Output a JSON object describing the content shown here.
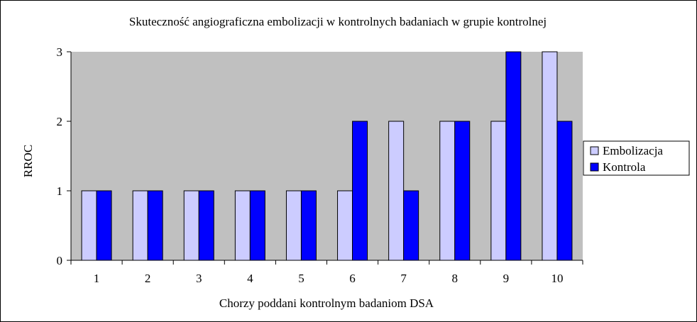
{
  "chart_data": {
    "type": "bar",
    "title": "Skuteczność angiograficzna embolizacji w kontrolnych badaniach  w grupie kontrolnej",
    "xlabel": "Chorzy poddani kontrolnym badaniom DSA",
    "ylabel": "RROC",
    "categories": [
      "1",
      "2",
      "3",
      "4",
      "5",
      "6",
      "7",
      "8",
      "9",
      "10"
    ],
    "series": [
      {
        "name": "Embolizacja",
        "color": "#ccccff",
        "values": [
          1,
          1,
          1,
          1,
          1,
          1,
          2,
          2,
          2,
          3
        ]
      },
      {
        "name": "Kontrola",
        "color": "#0000ff",
        "values": [
          1,
          1,
          1,
          1,
          1,
          2,
          1,
          2,
          3,
          2
        ]
      }
    ],
    "ylim": [
      0,
      3
    ],
    "yticks": [
      "0",
      "1",
      "2",
      "3"
    ],
    "grid": false,
    "plot_background": "#c0c0c0",
    "legend_position": "right"
  }
}
